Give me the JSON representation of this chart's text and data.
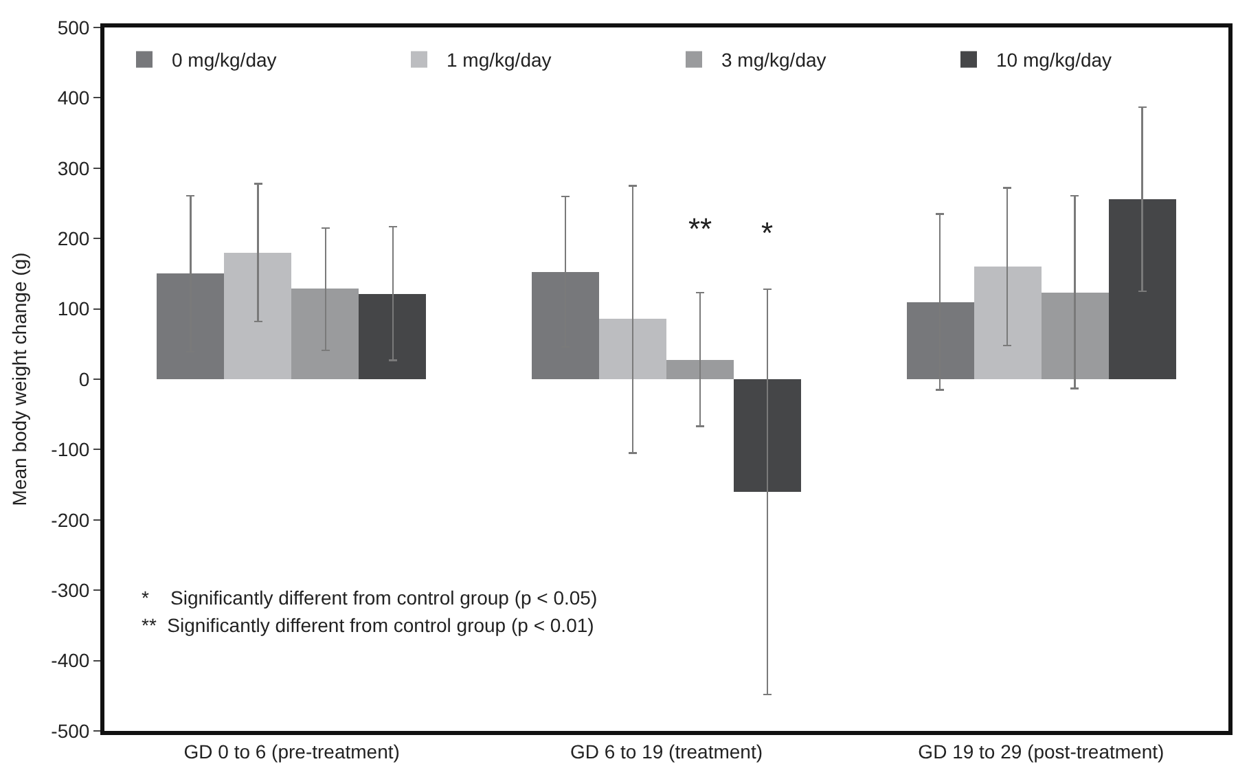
{
  "chart_data": {
    "type": "bar",
    "ylabel": "Mean body weight change (g)",
    "categories": [
      "GD 0 to 6 (pre-treatment)",
      "GD 6 to 19 (treatment)",
      "GD 19 to 29 (post-treatment)"
    ],
    "series": [
      {
        "name": "0 mg/kg/day",
        "color": "#77787b",
        "values": [
          150,
          153,
          110
        ],
        "errors": [
          111,
          107,
          125
        ]
      },
      {
        "name": "1 mg/kg/day",
        "color": "#bcbdc0",
        "values": [
          180,
          85,
          160
        ],
        "errors": [
          98,
          190,
          112
        ]
      },
      {
        "name": "3 mg/kg/day",
        "color": "#9a9b9d",
        "values": [
          128,
          28,
          124
        ],
        "errors": [
          87,
          95,
          137
        ]
      },
      {
        "name": "10 mg/kg/day",
        "color": "#454648",
        "values": [
          122,
          -160,
          256
        ],
        "errors": [
          95,
          288,
          131
        ]
      }
    ],
    "ylim": [
      -500,
      500
    ],
    "yticks": [
      -500,
      -400,
      -300,
      -200,
      -100,
      0,
      100,
      200,
      300,
      400,
      500
    ],
    "legend": "top",
    "annotations": [
      "**",
      "*",
      "*    Significantly different from control group (p < 0.05)",
      "**  Significantly different from control group (p < 0.01)"
    ]
  }
}
